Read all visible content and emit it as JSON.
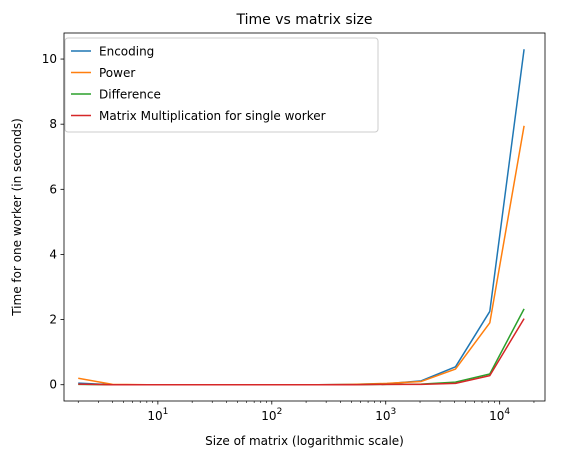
{
  "chart_data": {
    "type": "line",
    "title": "Time vs matrix size",
    "xlabel": "Size of matrix (logarithmic scale)",
    "ylabel": "Time for one worker (in seconds)",
    "x_scale": "log",
    "xlim": [
      1.5,
      25000
    ],
    "ylim": [
      -0.5,
      10.8
    ],
    "x_ticks": [
      {
        "value": 10,
        "base": "10",
        "exp": "1"
      },
      {
        "value": 100,
        "base": "10",
        "exp": "2"
      },
      {
        "value": 1000,
        "base": "10",
        "exp": "3"
      },
      {
        "value": 10000,
        "base": "10",
        "exp": "4"
      }
    ],
    "y_ticks": [
      0,
      2,
      4,
      6,
      8,
      10
    ],
    "grid": false,
    "legend_position": "top-left",
    "x": [
      2,
      4,
      8,
      16,
      32,
      64,
      128,
      256,
      512,
      1024,
      2048,
      4096,
      8192,
      16384
    ],
    "series": [
      {
        "name": "Encoding",
        "color": "#1f77b4",
        "values": [
          0.05,
          0.0,
          0.0,
          0.0,
          0.0,
          0.0,
          0.0,
          0.0,
          0.01,
          0.03,
          0.12,
          0.55,
          2.25,
          10.3
        ]
      },
      {
        "name": "Power",
        "color": "#ff7f0e",
        "values": [
          0.2,
          0.01,
          0.0,
          0.0,
          0.0,
          0.0,
          0.0,
          0.0,
          0.01,
          0.04,
          0.1,
          0.48,
          1.9,
          7.95
        ]
      },
      {
        "name": "Difference",
        "color": "#2ca02c",
        "values": [
          0.01,
          0.0,
          0.0,
          0.0,
          0.0,
          0.0,
          0.0,
          0.0,
          0.0,
          0.01,
          0.02,
          0.08,
          0.33,
          2.33
        ]
      },
      {
        "name": "Matrix Multiplication for single worker",
        "color": "#d62728",
        "values": [
          0.02,
          0.0,
          0.0,
          0.0,
          0.0,
          0.0,
          0.0,
          0.0,
          0.0,
          0.01,
          0.01,
          0.04,
          0.28,
          2.03
        ]
      }
    ]
  }
}
